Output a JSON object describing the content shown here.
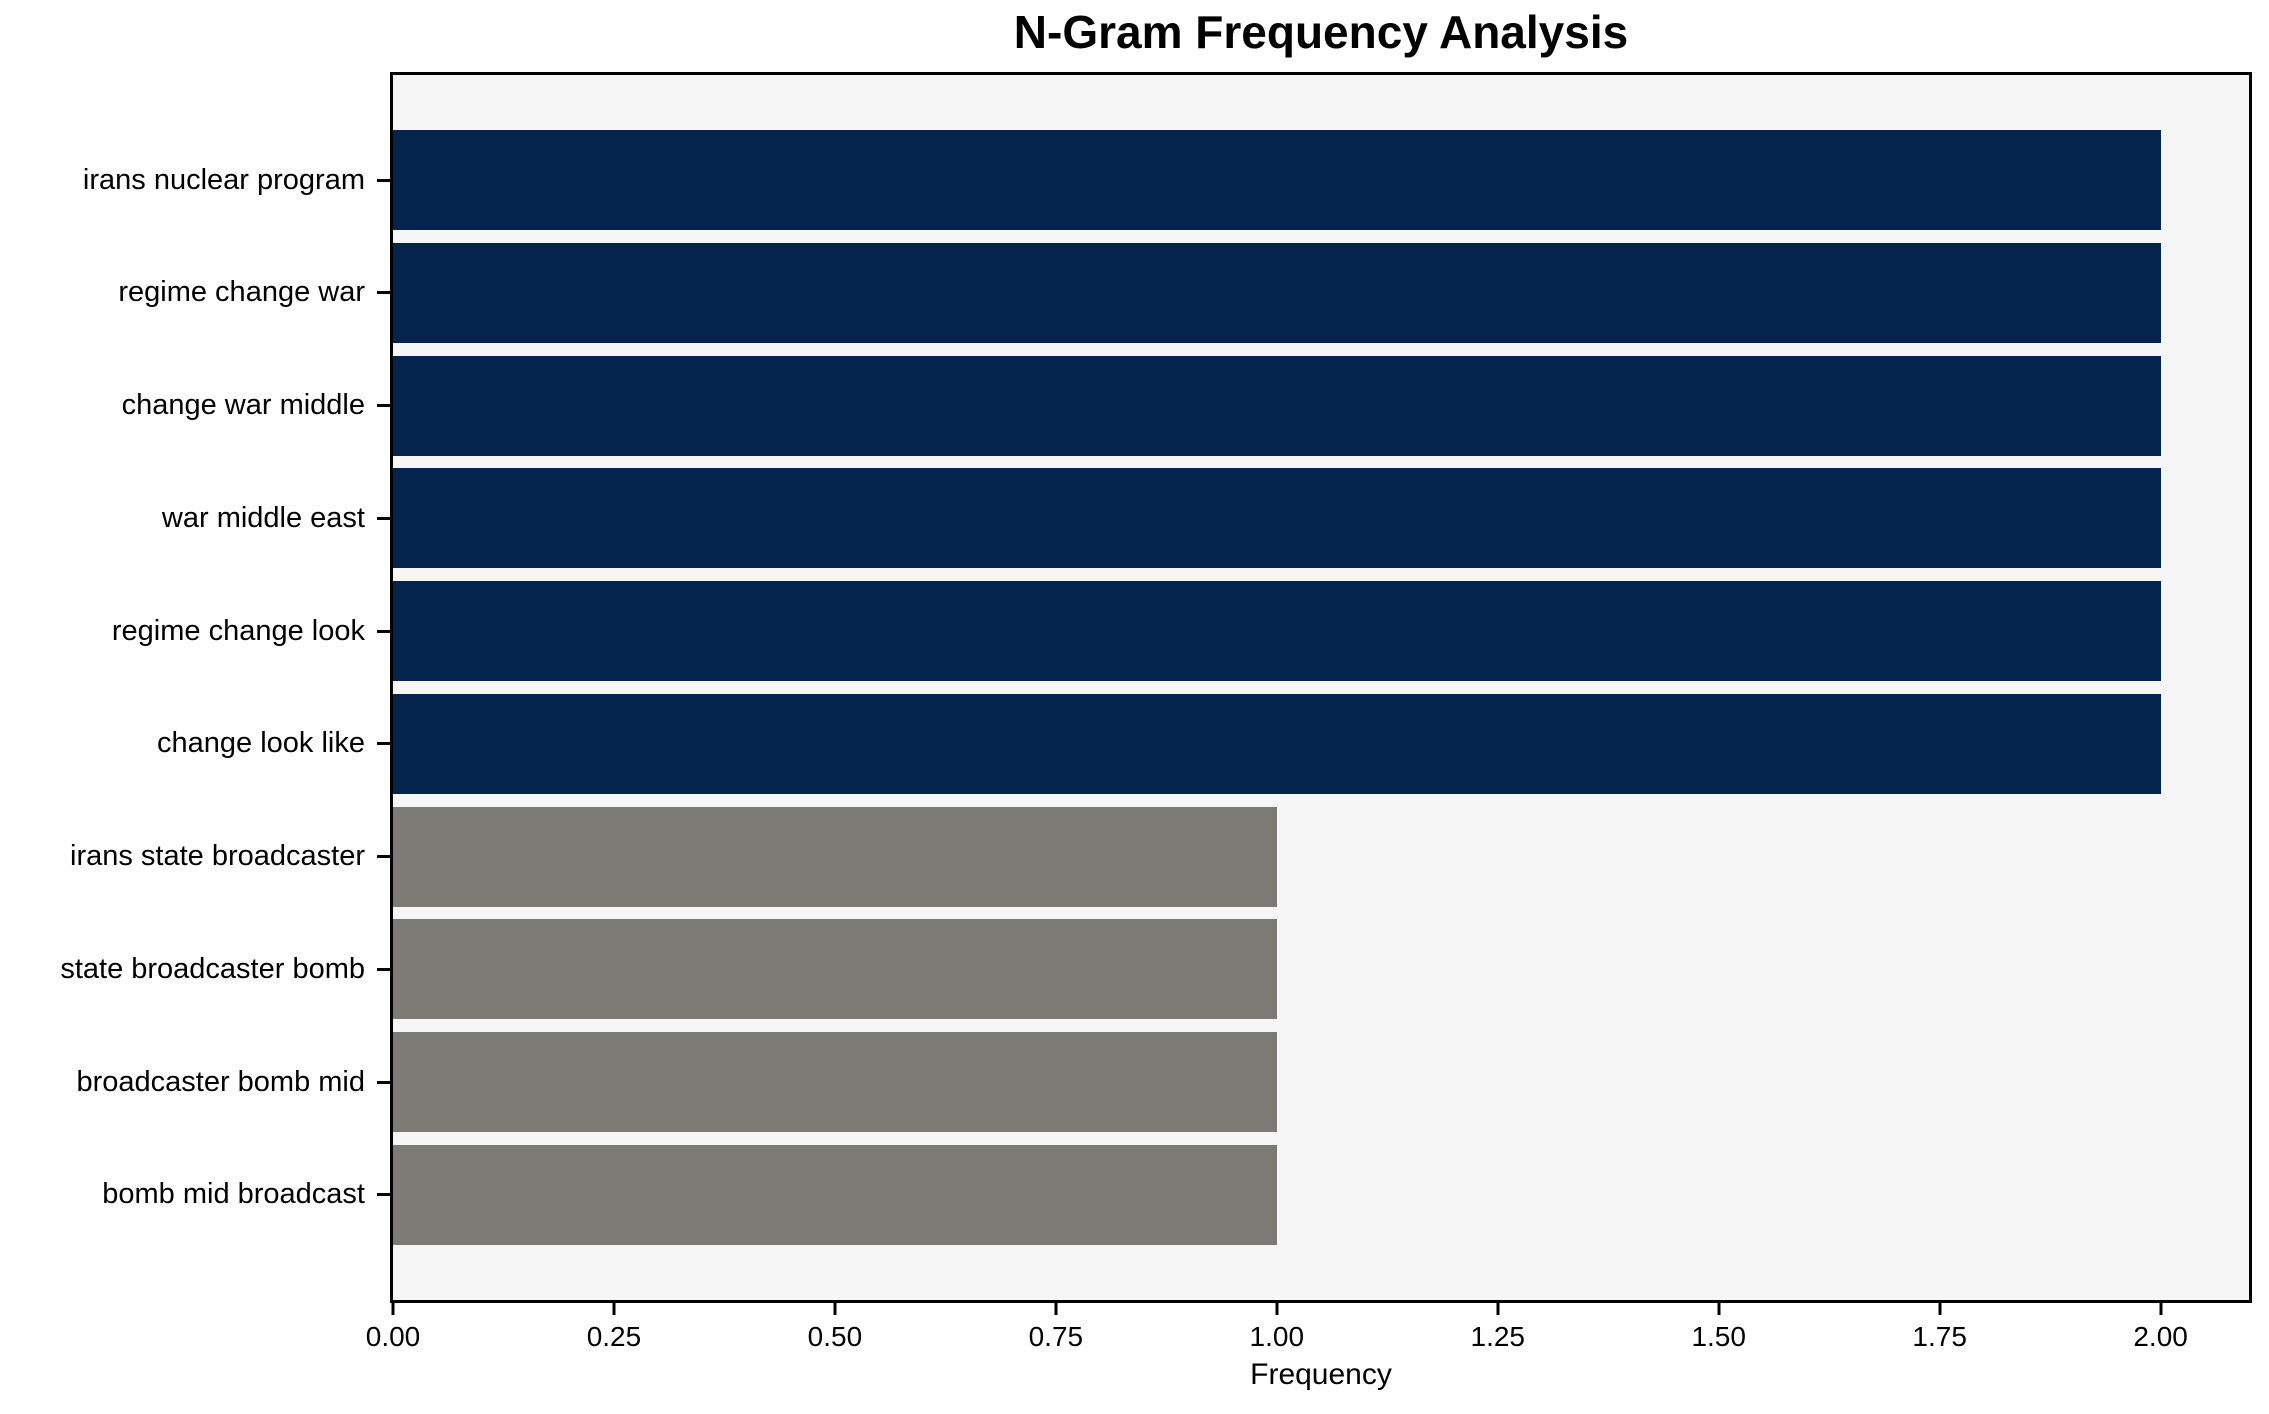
{
  "figure": {
    "background": "#ffffff",
    "plot_background": "#f6f6f6",
    "frame_color": "#000000",
    "text_color": "#000000"
  },
  "chart_data": {
    "type": "bar",
    "orientation": "horizontal",
    "title": "N-Gram Frequency Analysis",
    "xlabel": "Frequency",
    "ylabel": "",
    "categories": [
      "irans nuclear program",
      "regime change war",
      "change war middle",
      "war middle east",
      "regime change look",
      "change look like",
      "irans state broadcaster",
      "state broadcaster bomb",
      "broadcaster bomb mid",
      "bomb mid broadcast"
    ],
    "values": [
      2,
      2,
      2,
      2,
      2,
      2,
      1,
      1,
      1,
      1
    ],
    "bar_colors": [
      "#04234d",
      "#04234d",
      "#04234d",
      "#04234d",
      "#04234d",
      "#04234d",
      "#7b7a75",
      "#7b7a75",
      "#7b7a75",
      "#7b7a75"
    ],
    "color_legend": {
      "frequency_2": "#04234d",
      "frequency_1": "#7b7a75"
    },
    "xlim": [
      0,
      2.1
    ],
    "xtick_values": [
      0,
      0.25,
      0.5,
      0.75,
      1.0,
      1.25,
      1.5,
      1.75,
      2.0
    ],
    "xtick_labels": [
      "0.00",
      "0.25",
      "0.50",
      "0.75",
      "1.00",
      "1.25",
      "1.50",
      "1.75",
      "2.00"
    ],
    "grid": false,
    "legend_position": "none"
  }
}
